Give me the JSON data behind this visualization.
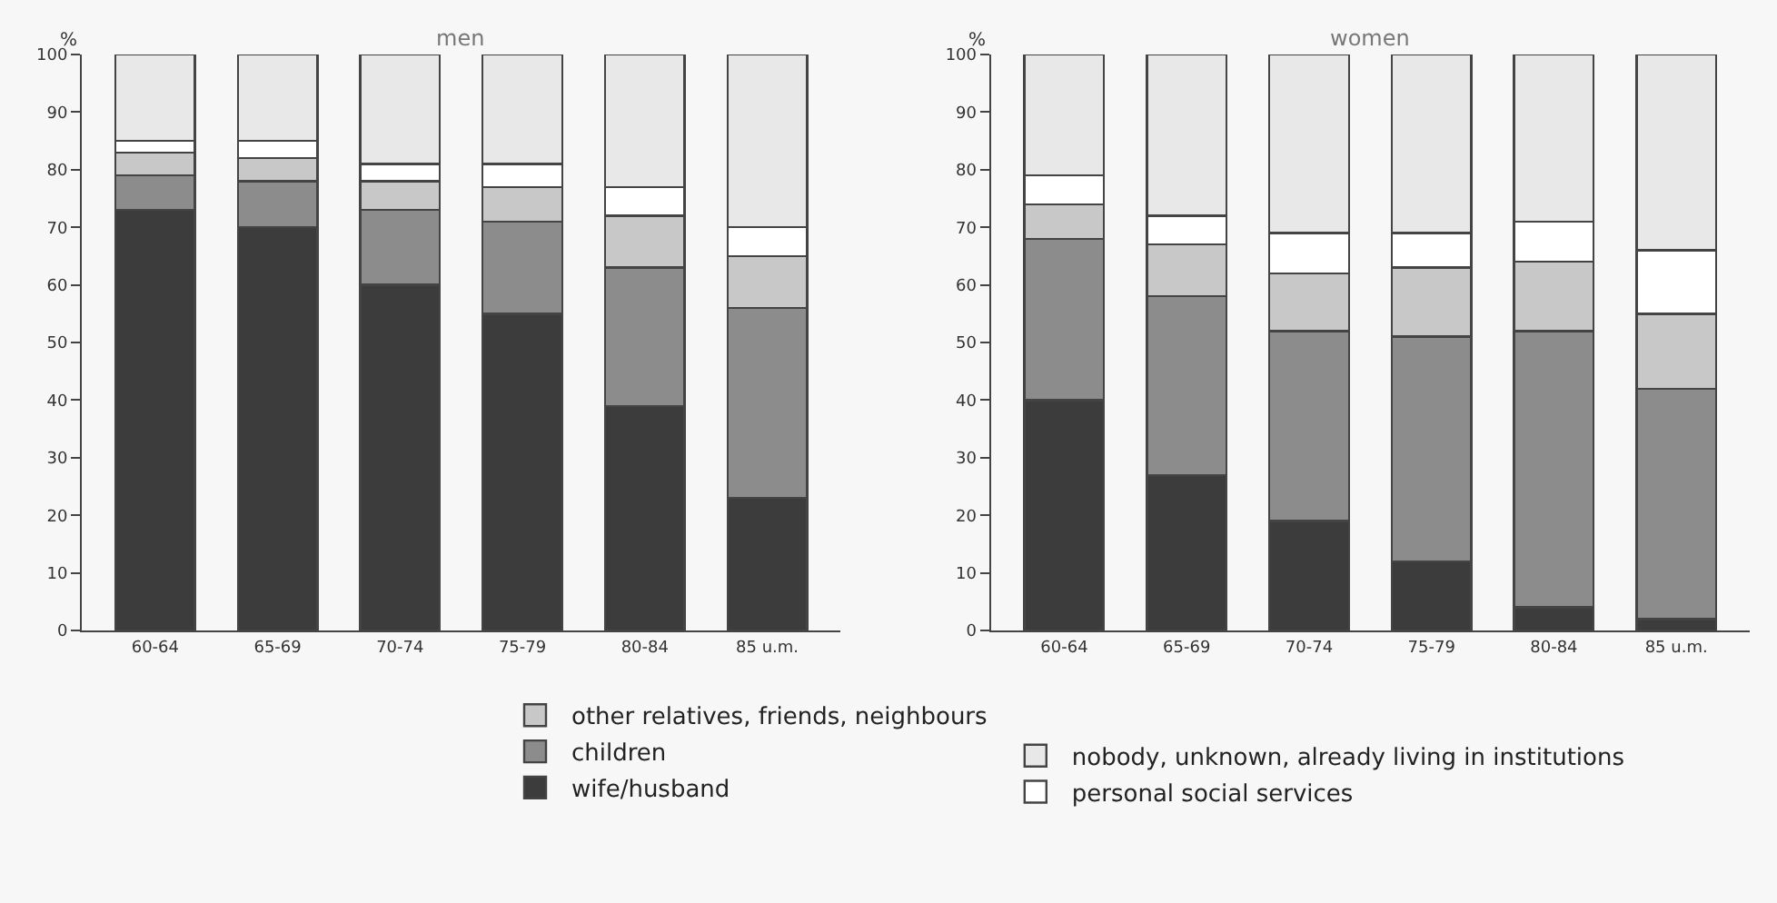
{
  "chart_data": [
    {
      "type": "bar",
      "title": "men",
      "ylabel": "%",
      "stacked": true,
      "legend": "bottom",
      "grid": false,
      "categories": [
        "60-64",
        "65-69",
        "70-74",
        "75-79",
        "80-84",
        "85 u.m."
      ],
      "ylim": [
        0,
        100
      ],
      "yticks": [
        0,
        10,
        20,
        30,
        40,
        50,
        60,
        70,
        80,
        90,
        100
      ],
      "series": [
        {
          "name": "wife/husband",
          "color": "#3c3c3c",
          "values": [
            73,
            70,
            60,
            55,
            39,
            23
          ]
        },
        {
          "name": "children",
          "color": "#8c8c8c",
          "values": [
            6,
            8,
            13,
            16,
            24,
            33
          ]
        },
        {
          "name": "other relatives, friends, neighbours",
          "color": "#c8c8c8",
          "values": [
            4,
            4,
            5,
            6,
            9,
            9
          ]
        },
        {
          "name": "personal social services",
          "color": "#ffffff",
          "values": [
            2,
            3,
            3,
            4,
            5,
            5
          ]
        },
        {
          "name": "nobody, unknown, already living in institutions",
          "color": "#e8e8e8",
          "values": [
            15,
            15,
            19,
            19,
            23,
            30
          ]
        }
      ]
    },
    {
      "type": "bar",
      "title": "women",
      "ylabel": "%",
      "stacked": true,
      "grid": false,
      "categories": [
        "60-64",
        "65-69",
        "70-74",
        "75-79",
        "80-84",
        "85 u.m."
      ],
      "ylim": [
        0,
        100
      ],
      "yticks": [
        0,
        10,
        20,
        30,
        40,
        50,
        60,
        70,
        80,
        90,
        100
      ],
      "series": [
        {
          "color": "#3c3c3c",
          "values": [
            40,
            27,
            19,
            12,
            4,
            2
          ]
        },
        {
          "color": "#8c8c8c",
          "values": [
            28,
            31,
            33,
            39,
            48,
            40
          ]
        },
        {
          "color": "#c8c8c8",
          "values": [
            6,
            9,
            10,
            12,
            12,
            13
          ]
        },
        {
          "color": "#ffffff",
          "values": [
            5,
            5,
            7,
            6,
            7,
            11
          ]
        },
        {
          "color": "#e8e8e8",
          "values": [
            21,
            28,
            31,
            31,
            29,
            34
          ]
        }
      ]
    }
  ]
}
